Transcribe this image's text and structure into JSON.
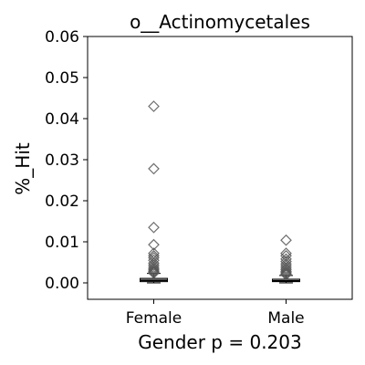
{
  "chart_data": {
    "type": "box",
    "title": "o__Actinomycetales",
    "ylabel": "%_Hit",
    "xlabel": "Gender p = 0.203",
    "categories": [
      "Female",
      "Male"
    ],
    "ylim": [
      -0.004,
      0.06
    ],
    "yticks": [
      0.0,
      0.01,
      0.02,
      0.03,
      0.04,
      0.05,
      0.06
    ],
    "ytick_labels": [
      "0.00",
      "0.01",
      "0.02",
      "0.03",
      "0.04",
      "0.05",
      "0.06"
    ],
    "grid": false,
    "boxes": [
      {
        "name": "Female",
        "q1": 0.0003,
        "median": 0.0006,
        "q3": 0.0011,
        "whisker_low": 0.0,
        "whisker_high": 0.0023,
        "outliers": [
          0.043,
          0.0278,
          0.0135,
          0.0093,
          0.0072,
          0.0066,
          0.0061,
          0.0055,
          0.0048,
          0.0043,
          0.0038,
          0.0034,
          0.0031,
          0.0028,
          0.0026,
          0.0024
        ]
      },
      {
        "name": "Male",
        "q1": 0.0003,
        "median": 0.0005,
        "q3": 0.0009,
        "whisker_low": 0.0,
        "whisker_high": 0.0018,
        "outliers": [
          0.0104,
          0.0072,
          0.0066,
          0.0058,
          0.0052,
          0.0046,
          0.0041,
          0.0036,
          0.0032,
          0.0028,
          0.0025,
          0.0022,
          0.002
        ]
      }
    ]
  }
}
